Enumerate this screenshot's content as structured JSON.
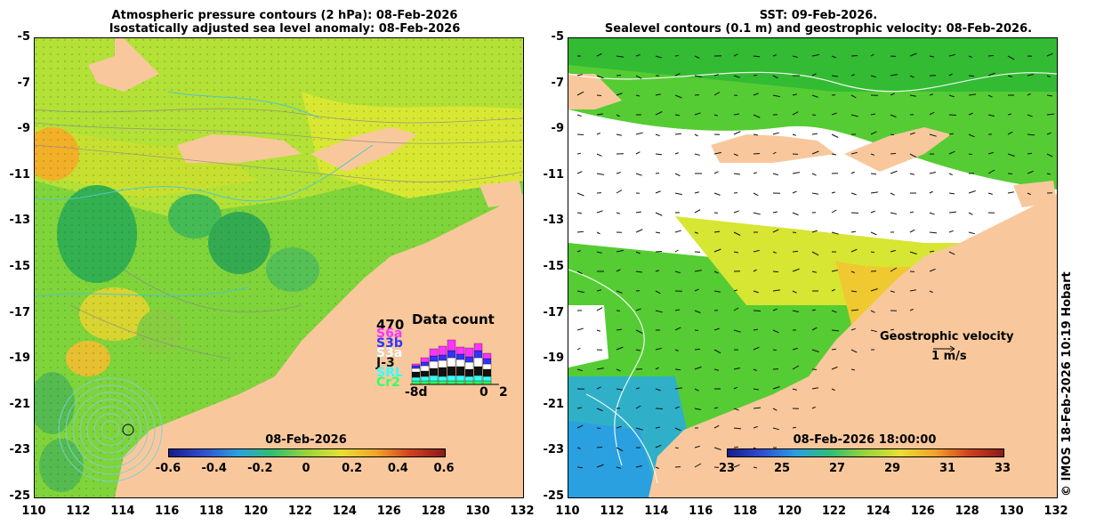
{
  "left": {
    "title_line1": "Atmospheric pressure contours (2 hPa): 08-Feb-2026",
    "title_line2": "Isostatically adjusted sea level anomaly: 08-Feb-2026",
    "colorbar_title": "08-Feb-2026",
    "colorbar_ticks": [
      "-0.6",
      "-0.4",
      "-0.2",
      "0",
      "0.2",
      "0.4",
      "0.6"
    ],
    "data_count": {
      "title": "Data count",
      "max": "470",
      "satellites": [
        {
          "name": "S6a",
          "color": "#ff33ff"
        },
        {
          "name": "S3b",
          "color": "#3333ff"
        },
        {
          "name": "S3a",
          "color": "#ffffff"
        },
        {
          "name": "J-3",
          "color": "#111111"
        },
        {
          "name": "SRL",
          "color": "#33ffff"
        },
        {
          "name": "Cr2",
          "color": "#33ff66"
        }
      ],
      "x_start": "-8d",
      "x_zero": "0",
      "x_end": "2"
    }
  },
  "right": {
    "title_line1": "SST: 09-Feb-2026.",
    "title_line2": "Sealevel contours (0.1 m) and geostrophic velocity: 08-Feb-2026.",
    "colorbar_title": "08-Feb-2026 18:00:00",
    "colorbar_ticks": [
      "23",
      "25",
      "27",
      "29",
      "31",
      "33"
    ],
    "velocity_label": "Geostrophic velocity",
    "velocity_scale": "1 m/s"
  },
  "axes": {
    "lat_labels": [
      "-5",
      "-7",
      "-9",
      "-11",
      "-13",
      "-15",
      "-17",
      "-19",
      "-21",
      "-23",
      "-25"
    ],
    "lon_labels": [
      "110",
      "112",
      "114",
      "116",
      "118",
      "120",
      "122",
      "124",
      "126",
      "128",
      "130",
      "132"
    ]
  },
  "credit": "© IMOS 18-Feb-2026 10:19 Hobart",
  "colors": {
    "land": "#f8c89c",
    "ocean_green": "#66cc33",
    "ocean_yellow": "#c8e632",
    "ocean_cloud": "#ffffff"
  }
}
